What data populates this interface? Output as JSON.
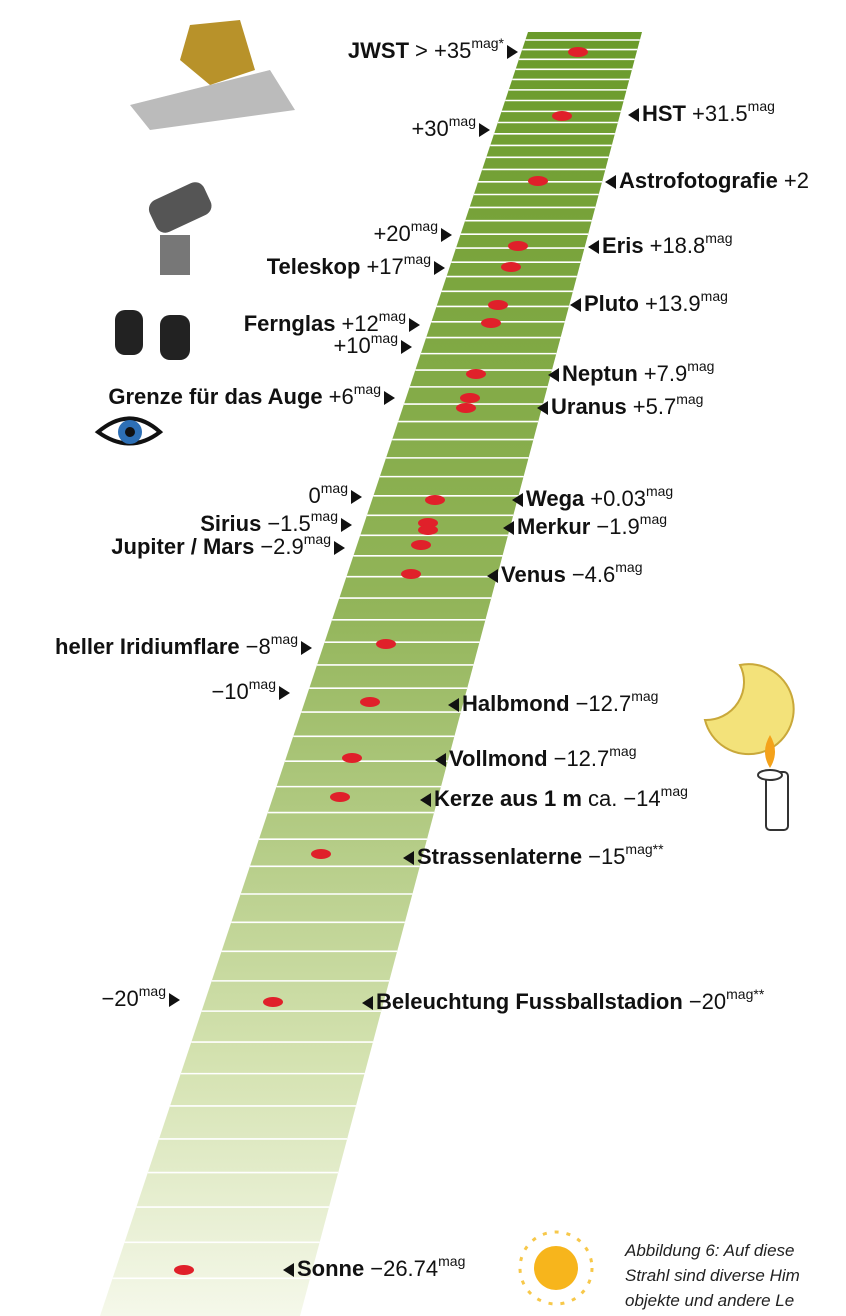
{
  "left_labels": [
    {
      "name": "JWST",
      "value": "> +35",
      "unit": "mag",
      "suffix": "*"
    },
    {
      "value": "+30",
      "unit": "mag"
    },
    {
      "value": "+20",
      "unit": "mag"
    },
    {
      "name": "Teleskop",
      "value": "+17",
      "unit": "mag"
    },
    {
      "name": "Fernglas",
      "value": "+12",
      "unit": "mag"
    },
    {
      "value": "+10",
      "unit": "mag"
    },
    {
      "name": "Grenze für das Auge",
      "value": "+6",
      "unit": "mag"
    },
    {
      "value": "0",
      "unit": "mag"
    },
    {
      "name": "Sirius",
      "value": "−1.5",
      "unit": "mag"
    },
    {
      "name": "Jupiter / Mars",
      "value": "−2.9",
      "unit": "mag"
    },
    {
      "name": "heller Iridiumflare",
      "value": "−8",
      "unit": "mag"
    },
    {
      "value": "−10",
      "unit": "mag"
    },
    {
      "value": "−20",
      "unit": "mag"
    }
  ],
  "right_labels": [
    {
      "name": "HST",
      "value": "+31.5",
      "unit": "mag"
    },
    {
      "name": "Astrofotografie",
      "value": "+2"
    },
    {
      "name": "Eris",
      "value": "+18.8",
      "unit": "mag"
    },
    {
      "name": "Pluto",
      "value": "+13.9",
      "unit": "mag"
    },
    {
      "name": "Neptun",
      "value": "+7.9",
      "unit": "mag"
    },
    {
      "name": "Uranus",
      "value": "+5.7",
      "unit": "mag"
    },
    {
      "name": "Wega",
      "value": "+0.03",
      "unit": "mag"
    },
    {
      "name": "Merkur",
      "value": "−1.9",
      "unit": "mag"
    },
    {
      "name": "Venus",
      "value": "−4.6",
      "unit": "mag"
    },
    {
      "name": "Halbmond",
      "value": "−12.7",
      "unit": "mag"
    },
    {
      "name": "Vollmond",
      "value": "−12.7",
      "unit": "mag"
    },
    {
      "name": "Kerze aus 1 m",
      "qualifier": "ca.",
      "value": "−14",
      "unit": "mag"
    },
    {
      "name": "Strassenlaterne",
      "value": "−15",
      "unit": "mag",
      "suffix": "**"
    },
    {
      "name": "Beleuchtung Fussballstadion",
      "value": "−20",
      "unit": "mag",
      "suffix": "**"
    },
    {
      "name": "Sonne",
      "value": "−26.74",
      "unit": "mag"
    }
  ],
  "caption": [
    "Abbildung 6:  Auf diese",
    "Strahl sind diverse Him",
    "objekte und andere Le"
  ]
}
